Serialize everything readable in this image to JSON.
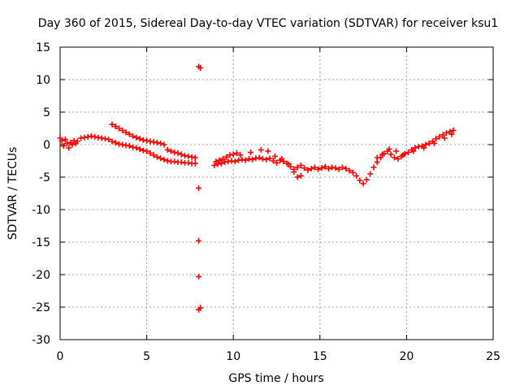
{
  "chart_data": {
    "type": "scatter",
    "title": "Day 360 of 2015, Sidereal Day-to-day VTEC variation (SDTVAR) for receiver ksu1",
    "xlabel": "GPS time / hours",
    "ylabel": "SDTVAR / TECUs",
    "xlim": [
      0,
      25
    ],
    "ylim": [
      -30,
      15
    ],
    "xticks": [
      0,
      5,
      10,
      15,
      20,
      25
    ],
    "yticks": [
      -30,
      -25,
      -20,
      -15,
      -10,
      -5,
      0,
      5,
      10,
      15
    ],
    "grid": true,
    "marker": "+",
    "point_color": "#ff0000",
    "series": [
      {
        "name": "main trace",
        "values": [
          [
            0.0,
            1.0
          ],
          [
            0.1,
            0.6
          ],
          [
            0.2,
            -0.2
          ],
          [
            0.3,
            0.8
          ],
          [
            0.4,
            0.2
          ],
          [
            0.5,
            -0.5
          ],
          [
            0.6,
            0.3
          ],
          [
            0.7,
            0.0
          ],
          [
            0.8,
            0.6
          ],
          [
            0.9,
            0.2
          ],
          [
            1.0,
            0.5
          ],
          [
            1.2,
            1.0
          ],
          [
            1.4,
            1.1
          ],
          [
            1.6,
            1.2
          ],
          [
            1.8,
            1.3
          ],
          [
            2.0,
            1.2
          ],
          [
            2.2,
            1.1
          ],
          [
            2.4,
            1.0
          ],
          [
            2.6,
            0.9
          ],
          [
            2.8,
            0.8
          ],
          [
            3.0,
            0.5
          ],
          [
            3.2,
            0.3
          ],
          [
            3.4,
            0.1
          ],
          [
            3.6,
            0.0
          ],
          [
            3.8,
            -0.1
          ],
          [
            4.0,
            -0.2
          ],
          [
            4.2,
            -0.4
          ],
          [
            4.4,
            -0.5
          ],
          [
            4.6,
            -0.7
          ],
          [
            4.8,
            -0.9
          ],
          [
            5.0,
            -1.0
          ],
          [
            5.2,
            -1.3
          ],
          [
            5.4,
            -1.6
          ],
          [
            5.6,
            -1.9
          ],
          [
            5.8,
            -2.1
          ],
          [
            6.0,
            -2.3
          ],
          [
            6.2,
            -2.5
          ],
          [
            6.4,
            -2.6
          ],
          [
            6.6,
            -2.6
          ],
          [
            6.8,
            -2.7
          ],
          [
            7.0,
            -2.7
          ],
          [
            7.2,
            -2.8
          ],
          [
            7.4,
            -2.8
          ],
          [
            7.6,
            -2.9
          ],
          [
            7.8,
            -2.9
          ],
          [
            8.9,
            -3.2
          ],
          [
            9.1,
            -3.0
          ],
          [
            9.3,
            -2.9
          ],
          [
            9.5,
            -2.7
          ],
          [
            9.7,
            -2.6
          ],
          [
            9.9,
            -2.5
          ],
          [
            10.1,
            -2.6
          ],
          [
            10.3,
            -2.4
          ],
          [
            10.5,
            -2.3
          ],
          [
            10.7,
            -2.4
          ],
          [
            10.9,
            -2.2
          ],
          [
            11.1,
            -2.3
          ],
          [
            11.3,
            -2.1
          ],
          [
            11.5,
            -2.0
          ],
          [
            11.7,
            -2.2
          ],
          [
            11.9,
            -2.3
          ],
          [
            12.1,
            -2.1
          ],
          [
            12.3,
            -2.5
          ],
          [
            12.5,
            -2.8
          ],
          [
            12.7,
            -2.4
          ],
          [
            12.9,
            -2.6
          ],
          [
            13.1,
            -2.9
          ],
          [
            13.3,
            -3.4
          ],
          [
            13.5,
            -3.8
          ],
          [
            13.7,
            -3.5
          ],
          [
            13.9,
            -3.2
          ],
          [
            14.1,
            -3.6
          ],
          [
            14.3,
            -3.9
          ],
          [
            14.5,
            -3.7
          ],
          [
            14.7,
            -3.5
          ],
          [
            14.9,
            -3.8
          ],
          [
            15.1,
            -3.6
          ],
          [
            15.3,
            -3.4
          ],
          [
            15.5,
            -3.7
          ],
          [
            15.7,
            -3.5
          ],
          [
            15.9,
            -3.6
          ],
          [
            16.1,
            -3.8
          ],
          [
            16.3,
            -3.5
          ],
          [
            16.5,
            -3.7
          ],
          [
            16.7,
            -4.0
          ],
          [
            16.9,
            -4.3
          ],
          [
            17.1,
            -4.8
          ],
          [
            17.3,
            -5.5
          ],
          [
            17.5,
            -6.0
          ],
          [
            17.7,
            -5.4
          ],
          [
            17.9,
            -4.5
          ],
          [
            18.1,
            -3.5
          ],
          [
            18.3,
            -2.7
          ],
          [
            18.5,
            -2.0
          ],
          [
            18.7,
            -1.4
          ],
          [
            18.9,
            -1.0
          ],
          [
            19.1,
            -1.5
          ],
          [
            19.3,
            -2.0
          ],
          [
            19.5,
            -2.2
          ],
          [
            19.7,
            -1.8
          ],
          [
            19.9,
            -1.4
          ],
          [
            20.1,
            -1.2
          ],
          [
            20.3,
            -0.8
          ],
          [
            20.5,
            -0.5
          ],
          [
            20.7,
            -0.3
          ],
          [
            20.9,
            -0.2
          ],
          [
            21.1,
            0.0
          ],
          [
            21.3,
            0.2
          ],
          [
            21.5,
            0.5
          ],
          [
            21.7,
            0.9
          ],
          [
            21.9,
            1.2
          ],
          [
            22.1,
            1.5
          ],
          [
            22.3,
            1.8
          ],
          [
            22.5,
            2.0
          ],
          [
            22.7,
            2.2
          ]
        ]
      },
      {
        "name": "upper trace",
        "values": [
          [
            3.0,
            3.1
          ],
          [
            3.2,
            2.8
          ],
          [
            3.4,
            2.5
          ],
          [
            3.6,
            2.2
          ],
          [
            3.8,
            1.9
          ],
          [
            4.0,
            1.6
          ],
          [
            4.2,
            1.3
          ],
          [
            4.4,
            1.1
          ],
          [
            4.6,
            0.9
          ],
          [
            4.8,
            0.7
          ],
          [
            5.0,
            0.6
          ],
          [
            5.2,
            0.5
          ],
          [
            5.4,
            0.4
          ],
          [
            5.6,
            0.3
          ],
          [
            5.8,
            0.2
          ],
          [
            6.0,
            0.0
          ],
          [
            6.2,
            -0.8
          ],
          [
            6.4,
            -1.0
          ],
          [
            6.6,
            -1.2
          ],
          [
            6.8,
            -1.3
          ],
          [
            7.0,
            -1.5
          ],
          [
            7.2,
            -1.7
          ],
          [
            7.4,
            -1.8
          ],
          [
            7.6,
            -1.9
          ],
          [
            7.8,
            -2.0
          ]
        ]
      },
      {
        "name": "secondary segment",
        "values": [
          [
            9.0,
            -2.6
          ],
          [
            9.2,
            -2.4
          ],
          [
            9.4,
            -2.2
          ],
          [
            9.6,
            -1.9
          ],
          [
            9.8,
            -1.6
          ],
          [
            10.0,
            -1.5
          ],
          [
            10.2,
            -1.3
          ],
          [
            10.4,
            -1.6
          ],
          [
            11.0,
            -1.2
          ],
          [
            11.6,
            -0.8
          ],
          [
            12.0,
            -1.0
          ],
          [
            12.4,
            -1.8
          ],
          [
            12.8,
            -2.2
          ],
          [
            13.2,
            -3.0
          ],
          [
            13.5,
            -4.2
          ],
          [
            13.7,
            -5.0
          ],
          [
            13.9,
            -4.8
          ],
          [
            18.3,
            -2.0
          ],
          [
            18.6,
            -1.5
          ],
          [
            19.0,
            -0.7
          ],
          [
            19.4,
            -1.0
          ],
          [
            19.8,
            -1.6
          ],
          [
            20.4,
            -1.0
          ],
          [
            21.0,
            -0.5
          ],
          [
            21.6,
            0.2
          ],
          [
            22.2,
            1.0
          ],
          [
            22.6,
            1.6
          ]
        ]
      },
      {
        "name": "isolated points near 8 h",
        "values": [
          [
            8.0,
            12.0
          ],
          [
            8.1,
            11.8
          ],
          [
            8.0,
            -6.7
          ],
          [
            8.0,
            -14.8
          ],
          [
            8.0,
            -20.3
          ],
          [
            8.0,
            -25.4
          ],
          [
            8.1,
            -25.1
          ]
        ]
      }
    ]
  }
}
